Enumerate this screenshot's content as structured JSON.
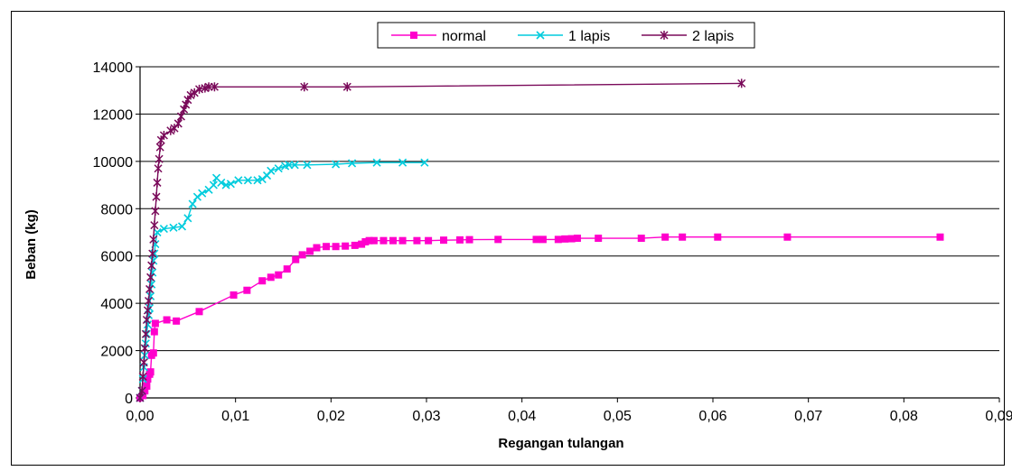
{
  "chart_data": {
    "type": "line",
    "xlabel": "Regangan tulangan",
    "ylabel": "Beban (kg)",
    "xlim": [
      0,
      0.09
    ],
    "ylim": [
      0,
      14000
    ],
    "grid": "horizontal major gridlines",
    "legend_position": "top-center",
    "x_ticks": [
      "0,00",
      "0,01",
      "0,02",
      "0,03",
      "0,04",
      "0,05",
      "0,06",
      "0,07",
      "0,08",
      "0,09"
    ],
    "y_ticks": [
      "0",
      "2000",
      "4000",
      "6000",
      "8000",
      "10000",
      "12000",
      "14000"
    ],
    "series": [
      {
        "name": "normal",
        "color": "#ff00cc",
        "marker": "square",
        "points": [
          [
            0,
            0
          ],
          [
            0.0003,
            100
          ],
          [
            0.0005,
            300
          ],
          [
            0.0007,
            500
          ],
          [
            0.0008,
            800
          ],
          [
            0.001,
            1000
          ],
          [
            0.0011,
            1100
          ],
          [
            0.0012,
            1800
          ],
          [
            0.0014,
            1900
          ],
          [
            0.0015,
            2800
          ],
          [
            0.0016,
            3150
          ],
          [
            0.0028,
            3300
          ],
          [
            0.0038,
            3250
          ],
          [
            0.0062,
            3650
          ],
          [
            0.0098,
            4350
          ],
          [
            0.0112,
            4550
          ],
          [
            0.0128,
            4950
          ],
          [
            0.0137,
            5100
          ],
          [
            0.0145,
            5200
          ],
          [
            0.0154,
            5450
          ],
          [
            0.0163,
            5850
          ],
          [
            0.017,
            6050
          ],
          [
            0.0178,
            6200
          ],
          [
            0.0185,
            6350
          ],
          [
            0.0195,
            6400
          ],
          [
            0.0205,
            6400
          ],
          [
            0.0215,
            6420
          ],
          [
            0.0225,
            6450
          ],
          [
            0.0232,
            6500
          ],
          [
            0.0236,
            6600
          ],
          [
            0.024,
            6650
          ],
          [
            0.0245,
            6650
          ],
          [
            0.0255,
            6650
          ],
          [
            0.0265,
            6650
          ],
          [
            0.0275,
            6650
          ],
          [
            0.029,
            6650
          ],
          [
            0.0302,
            6650
          ],
          [
            0.0318,
            6670
          ],
          [
            0.0335,
            6680
          ],
          [
            0.0345,
            6690
          ],
          [
            0.0375,
            6700
          ],
          [
            0.0415,
            6700
          ],
          [
            0.0422,
            6700
          ],
          [
            0.0438,
            6700
          ],
          [
            0.0445,
            6720
          ],
          [
            0.0452,
            6730
          ],
          [
            0.0458,
            6750
          ],
          [
            0.048,
            6750
          ],
          [
            0.0525,
            6750
          ],
          [
            0.055,
            6800
          ],
          [
            0.0568,
            6800
          ],
          [
            0.0605,
            6800
          ],
          [
            0.0678,
            6800
          ],
          [
            0.0838,
            6800
          ]
        ]
      },
      {
        "name": "1 lapis",
        "color": "#00ccdd",
        "marker": "x",
        "points": [
          [
            0,
            0
          ],
          [
            0.0002,
            300
          ],
          [
            0.0003,
            800
          ],
          [
            0.0004,
            1300
          ],
          [
            0.0005,
            1800
          ],
          [
            0.0006,
            2300
          ],
          [
            0.0007,
            2700
          ],
          [
            0.0008,
            3100
          ],
          [
            0.0009,
            3500
          ],
          [
            0.001,
            3800
          ],
          [
            0.0011,
            4300
          ],
          [
            0.0012,
            4800
          ],
          [
            0.0013,
            5300
          ],
          [
            0.0014,
            5800
          ],
          [
            0.0015,
            6100
          ],
          [
            0.0016,
            6500
          ],
          [
            0.0018,
            7000
          ],
          [
            0.0025,
            7150
          ],
          [
            0.0035,
            7200
          ],
          [
            0.0044,
            7250
          ],
          [
            0.005,
            7600
          ],
          [
            0.0055,
            8200
          ],
          [
            0.006,
            8500
          ],
          [
            0.0065,
            8650
          ],
          [
            0.0072,
            8800
          ],
          [
            0.0077,
            9000
          ],
          [
            0.008,
            9300
          ],
          [
            0.0085,
            9100
          ],
          [
            0.009,
            9000
          ],
          [
            0.0095,
            9050
          ],
          [
            0.0103,
            9200
          ],
          [
            0.0113,
            9200
          ],
          [
            0.0123,
            9200
          ],
          [
            0.0128,
            9250
          ],
          [
            0.0133,
            9400
          ],
          [
            0.0137,
            9600
          ],
          [
            0.0145,
            9700
          ],
          [
            0.0152,
            9800
          ],
          [
            0.0156,
            9850
          ],
          [
            0.0162,
            9850
          ],
          [
            0.0175,
            9850
          ],
          [
            0.0205,
            9880
          ],
          [
            0.0222,
            9920
          ],
          [
            0.0248,
            9950
          ],
          [
            0.0275,
            9950
          ],
          [
            0.0298,
            9950
          ]
        ]
      },
      {
        "name": "2 lapis",
        "color": "#7a0a5a",
        "marker": "star",
        "points": [
          [
            0,
            0
          ],
          [
            0.0002,
            300
          ],
          [
            0.0003,
            900
          ],
          [
            0.0004,
            1500
          ],
          [
            0.0005,
            2100
          ],
          [
            0.0006,
            2700
          ],
          [
            0.0007,
            3300
          ],
          [
            0.0008,
            3700
          ],
          [
            0.0009,
            4100
          ],
          [
            0.001,
            4600
          ],
          [
            0.0011,
            5100
          ],
          [
            0.0012,
            5600
          ],
          [
            0.0013,
            6100
          ],
          [
            0.0014,
            6700
          ],
          [
            0.0015,
            7300
          ],
          [
            0.0016,
            7900
          ],
          [
            0.0017,
            8500
          ],
          [
            0.0018,
            9100
          ],
          [
            0.0019,
            9700
          ],
          [
            0.002,
            10100
          ],
          [
            0.0021,
            10600
          ],
          [
            0.0022,
            10900
          ],
          [
            0.0025,
            11100
          ],
          [
            0.0032,
            11300
          ],
          [
            0.0036,
            11400
          ],
          [
            0.004,
            11600
          ],
          [
            0.0043,
            11900
          ],
          [
            0.0046,
            12200
          ],
          [
            0.0048,
            12400
          ],
          [
            0.005,
            12600
          ],
          [
            0.0053,
            12800
          ],
          [
            0.0057,
            12900
          ],
          [
            0.0062,
            13050
          ],
          [
            0.0068,
            13100
          ],
          [
            0.0072,
            13150
          ],
          [
            0.0078,
            13150
          ],
          [
            0.0172,
            13150
          ],
          [
            0.0217,
            13150
          ],
          [
            0.063,
            13300
          ]
        ]
      }
    ]
  }
}
